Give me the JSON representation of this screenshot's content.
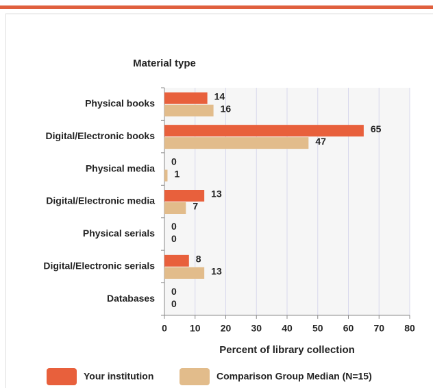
{
  "chart_data": {
    "type": "bar",
    "orientation": "horizontal",
    "title": "Material type",
    "x_label": "Percent of library collection",
    "categories": [
      "Physical books",
      "Digital/Electronic books",
      "Physical media",
      "Digital/Electronic media",
      "Physical serials",
      "Digital/Electronic serials",
      "Databases"
    ],
    "series": [
      {
        "name": "Your institution",
        "color": "#e8603c",
        "values": [
          14,
          65,
          0,
          13,
          0,
          8,
          0
        ]
      },
      {
        "name": "Comparison Group Median (N=15)",
        "color": "#e2bc8b",
        "values": [
          16,
          47,
          1,
          7,
          0,
          13,
          0
        ]
      }
    ],
    "xlim": [
      0,
      80
    ],
    "xticks": [
      0,
      10,
      20,
      30,
      40,
      50,
      60,
      70,
      80
    ],
    "grid": true
  }
}
